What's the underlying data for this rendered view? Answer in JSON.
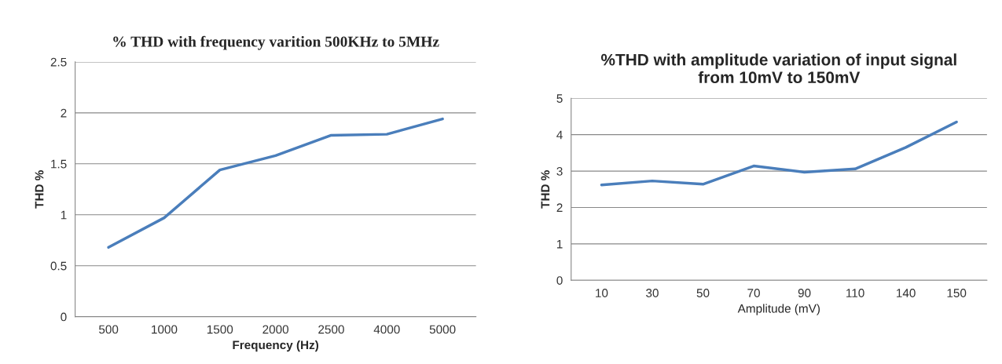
{
  "chart_data": [
    {
      "type": "line",
      "title": "% THD with frequency varition 500KHz to 5MHz",
      "xlabel": "Frequency (Hz)",
      "ylabel": "THD %",
      "categories": [
        "500",
        "1000",
        "1500",
        "2000",
        "2500",
        "4000",
        "5000"
      ],
      "series": [
        {
          "color": "#4a7ebb",
          "values": [
            0.68,
            0.97,
            1.44,
            1.58,
            1.78,
            1.79,
            1.94
          ]
        }
      ],
      "ylim": [
        0,
        2.5
      ],
      "yticks": [
        0,
        0.5,
        1,
        1.5,
        2,
        2.5
      ],
      "grid": "y"
    },
    {
      "type": "line",
      "title": "%THD with amplitude variation of input signal\nfrom 10mV to 150mV",
      "xlabel": "Amplitude (mV)",
      "ylabel": "THD %",
      "categories": [
        "10",
        "30",
        "50",
        "70",
        "90",
        "110",
        "140",
        "150"
      ],
      "series": [
        {
          "color": "#4a7ebb",
          "values": [
            2.62,
            2.73,
            2.64,
            3.14,
            2.97,
            3.06,
            3.65,
            4.35
          ]
        }
      ],
      "ylim": [
        0,
        5
      ],
      "yticks": [
        0,
        1,
        2,
        3,
        4,
        5
      ],
      "grid": "y"
    }
  ]
}
